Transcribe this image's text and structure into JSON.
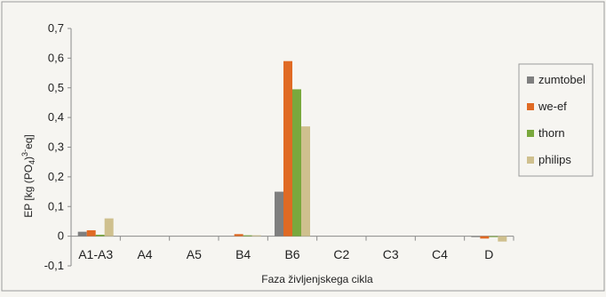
{
  "chart_data": {
    "type": "bar",
    "xlabel": "Faza življenjskega cikla",
    "ylabel": "EP [kg (PO4)3-eq]",
    "ylabel_parts": {
      "a": "EP [kg (PO",
      "sub": "4",
      "b": ")",
      "sup": "3-",
      "c": "eq]"
    },
    "categories": [
      "A1-A3",
      "A4",
      "A5",
      "B4",
      "B6",
      "C2",
      "C3",
      "C4",
      "D"
    ],
    "ylim": [
      -0.1,
      0.7
    ],
    "yticks": [
      "-0,1",
      "0",
      "0,1",
      "0,2",
      "0,3",
      "0,4",
      "0,5",
      "0,6",
      "0,7"
    ],
    "grid": false,
    "legend_position": "right",
    "series": [
      {
        "name": "zumtobel",
        "color": "#7f7f7f",
        "values": [
          0.015,
          0,
          0,
          0,
          0.15,
          0,
          0,
          0,
          -0.003
        ]
      },
      {
        "name": "we-ef",
        "color": "#e06a24",
        "values": [
          0.02,
          0,
          0,
          0.007,
          0.59,
          0,
          0,
          0,
          -0.008
        ]
      },
      {
        "name": "thorn",
        "color": "#79a83d",
        "values": [
          0.005,
          0,
          0,
          0.003,
          0.495,
          0,
          0,
          0,
          -0.002
        ]
      },
      {
        "name": "philips",
        "color": "#cfc08e",
        "values": [
          0.06,
          0,
          0,
          0.003,
          0.37,
          0,
          0,
          0,
          -0.018
        ]
      }
    ]
  }
}
